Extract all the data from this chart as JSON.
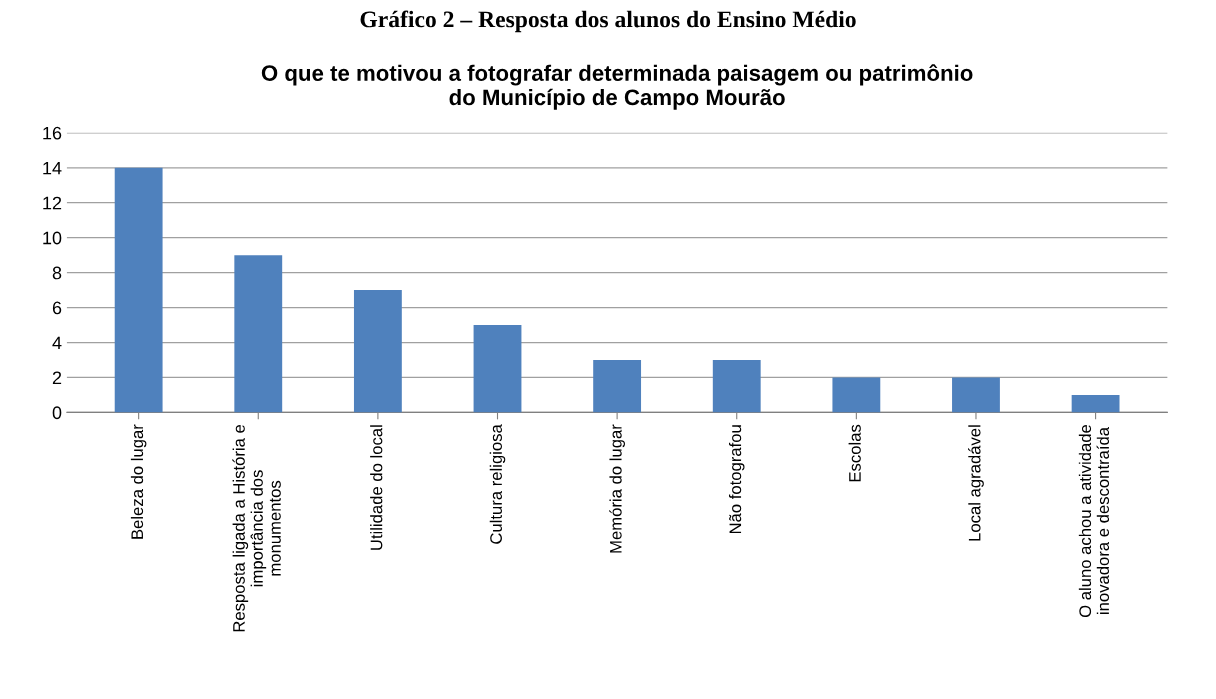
{
  "chart_data": {
    "type": "bar",
    "title": "O que te motivou a fotografar determinada paisagem ou patrimônio\ndo Município de Campo Mourão",
    "annotations": [
      "Gráfico 2 – Resposta dos alunos do Ensino Médio"
    ],
    "categories": [
      "Beleza do lugar",
      "Resposta ligada a História e\nimportância dos\nmonumentos",
      "Utilidade do local",
      "Cultura religiosa",
      "Memória do lugar",
      "Não fotografou",
      "Escolas",
      "Local agradável",
      "O aluno achou a atividade\ninovadora e descontraída"
    ],
    "values": [
      14,
      9,
      7,
      5,
      3,
      3,
      2,
      2,
      1
    ],
    "color": "#4f81bd",
    "ylim": [
      0,
      16
    ],
    "yticks": [
      0,
      2,
      4,
      6,
      8,
      10,
      12,
      14,
      16
    ],
    "grid": "y"
  }
}
